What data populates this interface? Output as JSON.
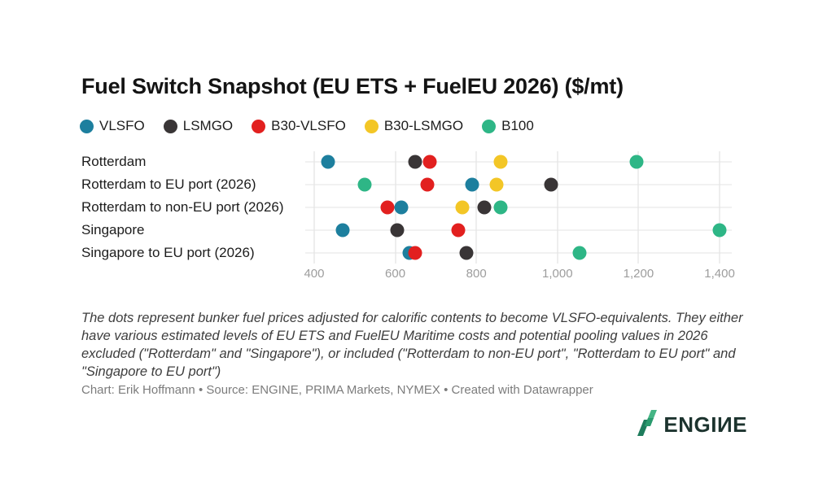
{
  "title": "Fuel Switch Snapshot (EU ETS + FuelEU 2026) ($/mt)",
  "chart_data": {
    "type": "scatter",
    "orientation": "horizontal-dot-plot",
    "categories": [
      "Rotterdam",
      "Rotterdam to EU port (2026)",
      "Rotterdam to non-EU port (2026)",
      "Singapore",
      "Singapore to EU port (2026)"
    ],
    "series": [
      {
        "name": "VLSFO",
        "color": "#1d7f9e",
        "values": [
          435,
          790,
          615,
          470,
          635
        ]
      },
      {
        "name": "LSMGO",
        "color": "#393536",
        "values": [
          650,
          985,
          820,
          605,
          775
        ]
      },
      {
        "name": "B30-VLSFO",
        "color": "#e2201f",
        "values": [
          685,
          680,
          580,
          755,
          650
        ]
      },
      {
        "name": "B30-LSMGO",
        "color": "#f3c626",
        "values": [
          860,
          850,
          765,
          null,
          null
        ]
      },
      {
        "name": "B100",
        "color": "#2eb686",
        "values": [
          1195,
          525,
          860,
          1400,
          1055
        ]
      }
    ],
    "x_ticks": [
      400,
      600,
      800,
      1000,
      1200,
      1400
    ],
    "x_tick_labels": [
      "400",
      "600",
      "800",
      "1,000",
      "1,200",
      "1,400"
    ],
    "xlim": [
      378,
      1430
    ],
    "xlabel": "",
    "ylabel": "",
    "grid": true,
    "legend_position": "top",
    "units": "$/mt"
  },
  "note": "The dots represent bunker fuel prices adjusted for calorific contents to become VLSFO-equivalents. They either have various estimated levels of EU ETS and FuelEU Maritime costs and potential pooling values in 2026 excluded (\"Rotterdam\" and \"Singapore\"), or included (\"Rotterdam to non-EU port\", \"Rotterdam to EU port\" and \"Singapore to EU port\")",
  "credit": "Chart: Erik Hoffmann • Source: ENGINE, PRIMA Markets, NYMEX • Created with Datawrapper",
  "logo": {
    "text": "ENGIИE",
    "mark_color_dark": "#1e7c5c",
    "mark_color_light": "#45b585"
  }
}
